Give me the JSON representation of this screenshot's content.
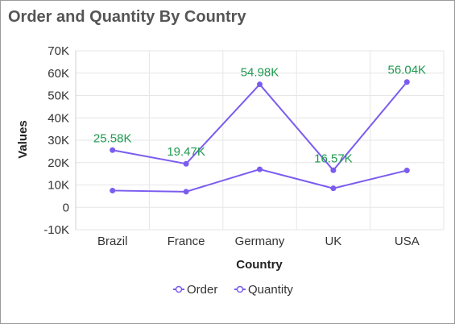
{
  "chart_data": {
    "type": "line",
    "title": "Order and Quantity By Country",
    "xlabel": "Country",
    "ylabel": "Values",
    "categories": [
      "Brazil",
      "France",
      "Germany",
      "UK",
      "USA"
    ],
    "ylim": [
      -10000,
      70000
    ],
    "yticks": [
      {
        "value": 70000,
        "label": "70K"
      },
      {
        "value": 60000,
        "label": "60K"
      },
      {
        "value": 50000,
        "label": "50K"
      },
      {
        "value": 40000,
        "label": "40K"
      },
      {
        "value": 30000,
        "label": "30K"
      },
      {
        "value": 20000,
        "label": "20K"
      },
      {
        "value": 10000,
        "label": "10K"
      },
      {
        "value": 0,
        "label": "0"
      },
      {
        "value": -10000,
        "label": "-10K"
      }
    ],
    "series": [
      {
        "name": "Order",
        "values": [
          7500,
          7000,
          17000,
          8500,
          16500
        ],
        "labels": []
      },
      {
        "name": "Quantity",
        "values": [
          25580,
          19470,
          54980,
          16570,
          56040
        ],
        "labels": [
          "25.58K",
          "19.47K",
          "54.98K",
          "16.57K",
          "56.04K"
        ]
      }
    ],
    "legend": "bottom",
    "grid": true,
    "colors": {
      "line": "#7b5cf0",
      "data_label": "#1e9a4e",
      "grid": "#e6e6e6",
      "text": "#333333"
    }
  }
}
